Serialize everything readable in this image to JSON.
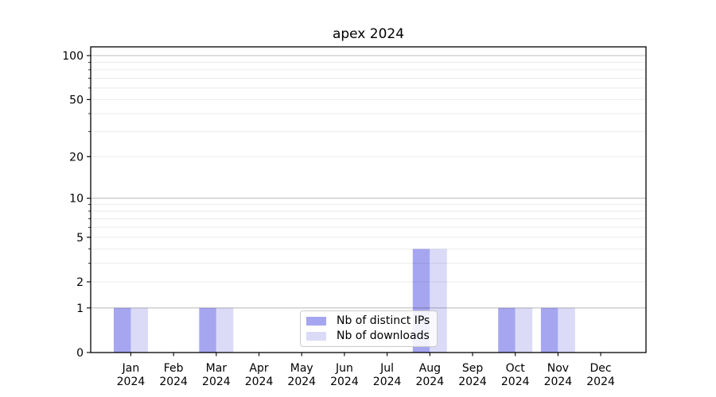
{
  "chart_data": {
    "type": "bar",
    "title": "apex 2024",
    "categories": [
      "Jan",
      "Feb",
      "Mar",
      "Apr",
      "May",
      "Jun",
      "Jul",
      "Aug",
      "Sep",
      "Oct",
      "Nov",
      "Dec"
    ],
    "category_year": "2024",
    "series": [
      {
        "name": "Nb of distinct IPs",
        "color": "#a6a6f0",
        "values": [
          1,
          0,
          1,
          0,
          0,
          0,
          0,
          4,
          0,
          1,
          1,
          0
        ]
      },
      {
        "name": "Nb of downloads",
        "color": "#dbdbf8",
        "values": [
          1,
          0,
          1,
          0,
          0,
          0,
          0,
          4,
          0,
          1,
          1,
          0
        ]
      }
    ],
    "y_axis": {
      "scale": "log10(1+x)",
      "tick_labels": [
        "100",
        "50",
        "20",
        "10",
        "5",
        "2",
        "1",
        "0"
      ],
      "tick_values": [
        100,
        50,
        20,
        10,
        5,
        2,
        1,
        0
      ],
      "major_gridlines": [
        1,
        10,
        100
      ],
      "minor_gridlines": [
        2,
        3,
        4,
        5,
        6,
        7,
        8,
        9,
        20,
        30,
        40,
        50,
        60,
        70,
        80,
        90
      ],
      "ylim": [
        0,
        110
      ]
    },
    "xlabel": "",
    "ylabel": "",
    "grid": true,
    "legend": {
      "position": "lower center",
      "entries": [
        "Nb of distinct IPs",
        "Nb of downloads"
      ]
    },
    "colors": {
      "major_grid": "rgba(0,0,0,0.25)",
      "minor_grid": "rgba(0,0,0,0.08)",
      "axis": "#000000",
      "text": "#000000",
      "background": "#ffffff"
    }
  }
}
